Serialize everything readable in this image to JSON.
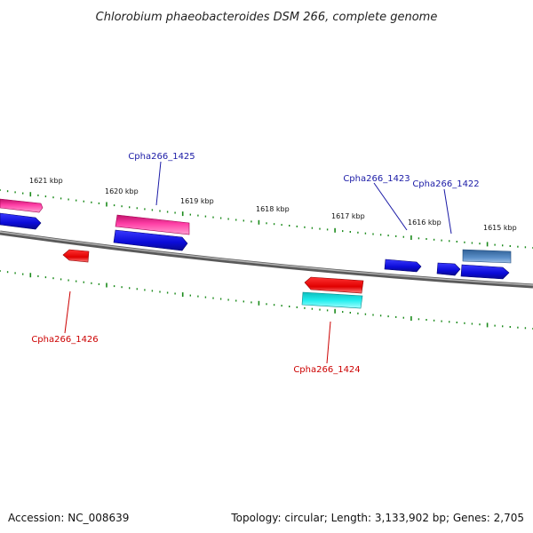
{
  "title": "Chlorobium phaeobacteroides DSM 266, complete genome",
  "footer": {
    "accession": "Accession: NC_008639",
    "summary": "Topology: circular; Length: 3,133,902 bp; Genes: 2,705"
  },
  "kbp_labels": [
    "1621 kbp",
    "1620 kbp",
    "1619 kbp",
    "1618 kbp",
    "1617 kbp",
    "1616 kbp",
    "1615 kbp"
  ],
  "gene_labels": {
    "g1425": "Cpha266_1425",
    "g1423": "Cpha266_1423",
    "g1422": "Cpha266_1422",
    "g1426": "Cpha266_1426",
    "g1424": "Cpha266_1424"
  },
  "colors": {
    "forward_label": "#1a1aa6",
    "reverse_label": "#cc0000",
    "gene_blue": "#1010ee",
    "gene_pink": "#ee3399",
    "gene_red": "#ee1111",
    "gene_cyan": "#22dddd",
    "gene_steel": "#4a7fb5",
    "backbone": "#777777",
    "ticks": "#1a8a1a"
  }
}
